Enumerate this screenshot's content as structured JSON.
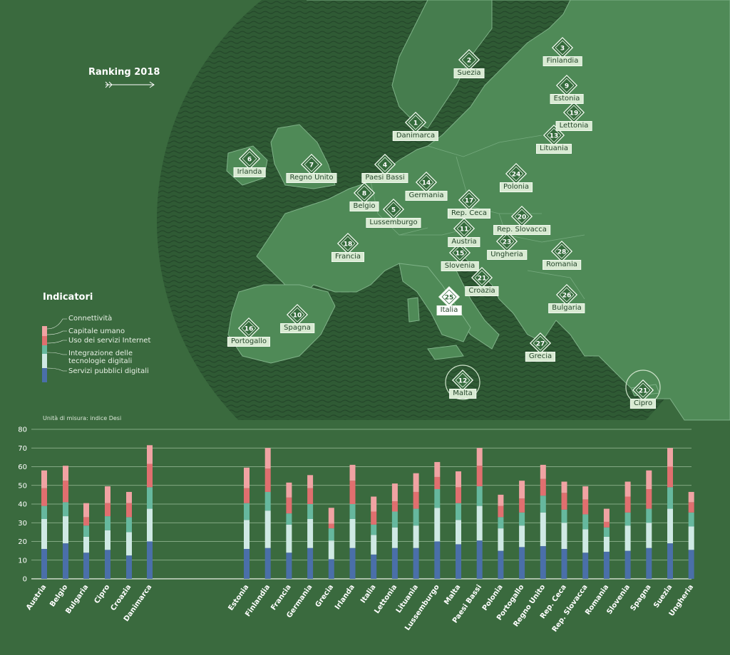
{
  "header": {
    "ranking_title": "Ranking 2018"
  },
  "legend": {
    "title": "Indicatori",
    "items": [
      {
        "label": "Connettività",
        "color": "#f0a3a3"
      },
      {
        "label": "Capitale umano",
        "color": "#e06f6f"
      },
      {
        "label": "Uso dei servizi Internet",
        "color": "#66b89e"
      },
      {
        "label": "Integrazione delle\ntecnologie digitali",
        "color": "#cfe9e4"
      },
      {
        "label": "Servizi pubblici digitali",
        "color": "#4a6fa9"
      }
    ]
  },
  "map": {
    "countries": [
      {
        "name": "Suezia",
        "rank": "2"
      },
      {
        "name": "Finlandia",
        "rank": "3"
      },
      {
        "name": "Estonia",
        "rank": "9"
      },
      {
        "name": "Lettonia",
        "rank": "19"
      },
      {
        "name": "Lituania",
        "rank": "13"
      },
      {
        "name": "Danimarca",
        "rank": "1"
      },
      {
        "name": "Irlanda",
        "rank": "6"
      },
      {
        "name": "Regno Unito",
        "rank": "7"
      },
      {
        "name": "Paesi Bassi",
        "rank": "4"
      },
      {
        "name": "Germania",
        "rank": "14"
      },
      {
        "name": "Polonia",
        "rank": "24"
      },
      {
        "name": "Belgio",
        "rank": "8"
      },
      {
        "name": "Rep. Ceca",
        "rank": "17"
      },
      {
        "name": "Lussemburgo",
        "rank": "5"
      },
      {
        "name": "Rep. Slovacca",
        "rank": "20"
      },
      {
        "name": "Austria",
        "rank": "11"
      },
      {
        "name": "Ungheria",
        "rank": "23"
      },
      {
        "name": "Francia",
        "rank": "18"
      },
      {
        "name": "Slovenia",
        "rank": "15"
      },
      {
        "name": "Romania",
        "rank": "28"
      },
      {
        "name": "Croazia",
        "rank": "21"
      },
      {
        "name": "Italia",
        "rank": "25"
      },
      {
        "name": "Bulgaria",
        "rank": "26"
      },
      {
        "name": "Spagna",
        "rank": "10"
      },
      {
        "name": "Portogallo",
        "rank": "16"
      },
      {
        "name": "Grecia",
        "rank": "27"
      },
      {
        "name": "Malta",
        "rank": "12"
      },
      {
        "name": "Cipro",
        "rank": "21"
      }
    ]
  },
  "chart_data": {
    "type": "bar",
    "stacked": true,
    "unit_label": "Unità di misura: indice Desi",
    "ylim": [
      0,
      80
    ],
    "yticks": [
      0,
      10,
      20,
      30,
      40,
      50,
      60,
      70,
      80
    ],
    "grid": true,
    "categories": [
      "Austria",
      "Belgio",
      "Bulgaria",
      "Cipro",
      "Croazia",
      "Danimarca",
      "Estonia",
      "Finlandia",
      "Francia",
      "Germania",
      "Grecia",
      "Irlanda",
      "Italia",
      "Lettonia",
      "Lituania",
      "Lussemburgo",
      "Malta",
      "Paesi Bassi",
      "Polonia",
      "Portogallo",
      "Regno Unito",
      "Rep. Ceca",
      "Rep. Slovacca",
      "Romania",
      "Slovenia",
      "Spagna",
      "Suezia",
      "Ungheria"
    ],
    "series": [
      {
        "name": "Servizi pubblici digitali",
        "color": "#4a6fa9",
        "values": [
          16,
          19,
          14,
          15.5,
          12.5,
          20,
          16,
          16.5,
          14,
          16.5,
          10.5,
          16.5,
          13,
          16.5,
          16.5,
          20,
          18.5,
          20.5,
          15,
          17,
          17.5,
          16,
          14,
          14.5,
          15,
          16.5,
          19,
          15.5
        ]
      },
      {
        "name": "Integrazione delle tecnologie digitali",
        "color": "#cfe9e4",
        "values": [
          16,
          14.5,
          8.5,
          10.5,
          12.5,
          17.5,
          15.5,
          20,
          15,
          15.5,
          10,
          15.5,
          10.5,
          11,
          12,
          18,
          13,
          18.5,
          12,
          11.5,
          18,
          14,
          12.5,
          8,
          13.5,
          13.5,
          18.5,
          12.5
        ]
      },
      {
        "name": "Uso dei servizi Internet",
        "color": "#66b89e",
        "values": [
          7,
          7.5,
          6,
          7.5,
          8,
          11.5,
          9,
          10,
          6,
          8,
          6.5,
          8,
          5.5,
          8.5,
          9,
          10,
          9,
          10.5,
          6,
          7,
          9,
          7,
          8,
          5,
          7,
          7.5,
          11.5,
          7.5
        ]
      },
      {
        "name": "Capitale umano",
        "color": "#e06f6f",
        "values": [
          9.5,
          11.5,
          4.5,
          7,
          7.5,
          12.5,
          8,
          12.5,
          8.5,
          8.5,
          2.5,
          12.5,
          7,
          5.5,
          9,
          6.5,
          8.5,
          11,
          6,
          7.5,
          9,
          9,
          8,
          3,
          8.5,
          10.5,
          11,
          5.5
        ]
      },
      {
        "name": "Connettività",
        "color": "#f0a3a3",
        "values": [
          9.5,
          8,
          7.5,
          9,
          6,
          10,
          11,
          11,
          8,
          7,
          8.5,
          8.5,
          8,
          9.5,
          10,
          8,
          8.5,
          9.5,
          6,
          9.5,
          7.5,
          6,
          7,
          7,
          8,
          10,
          10,
          5.5
        ]
      }
    ]
  }
}
